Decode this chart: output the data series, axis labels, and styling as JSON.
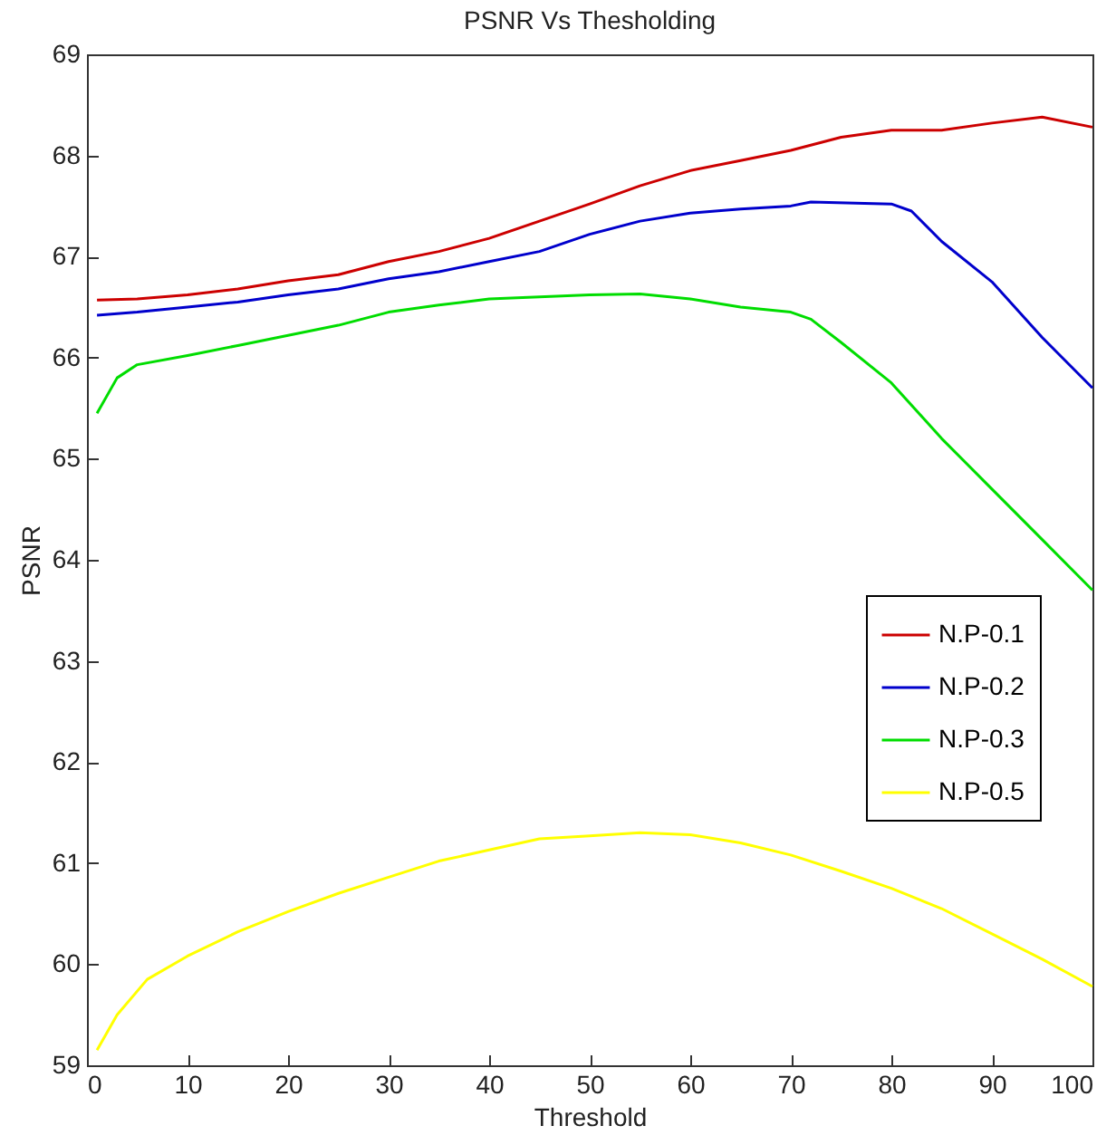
{
  "chart_data": {
    "type": "line",
    "title": "PSNR Vs Thesholding",
    "xlabel": "Threshold",
    "ylabel": "PSNR",
    "xlim": [
      0,
      100
    ],
    "xticks": [
      0,
      10,
      20,
      30,
      40,
      50,
      60,
      70,
      80,
      90,
      100
    ],
    "ylim": [
      59,
      69
    ],
    "yticks": [
      59,
      60,
      61,
      62,
      63,
      64,
      65,
      66,
      67,
      68,
      69
    ],
    "legend": "right",
    "grid": false,
    "series": [
      {
        "name": "N.P-0.1",
        "color": "#cc0000",
        "x": [
          1,
          5,
          10,
          15,
          20,
          25,
          30,
          35,
          40,
          45,
          50,
          55,
          60,
          65,
          70,
          75,
          80,
          85,
          90,
          95,
          100
        ],
        "values": [
          66.57,
          66.58,
          66.62,
          66.68,
          66.76,
          66.82,
          66.95,
          67.05,
          67.18,
          67.35,
          67.52,
          67.7,
          67.85,
          67.95,
          68.05,
          68.18,
          68.25,
          68.25,
          68.32,
          68.38,
          68.28
        ]
      },
      {
        "name": "N.P-0.2",
        "color": "#0000cc",
        "x": [
          1,
          5,
          10,
          15,
          20,
          25,
          30,
          35,
          40,
          45,
          50,
          55,
          60,
          65,
          70,
          72,
          80,
          82,
          85,
          90,
          95,
          100
        ],
        "values": [
          66.42,
          66.45,
          66.5,
          66.55,
          66.62,
          66.68,
          66.78,
          66.85,
          66.95,
          67.05,
          67.22,
          67.35,
          67.43,
          67.47,
          67.5,
          67.54,
          67.52,
          67.45,
          67.15,
          66.75,
          66.2,
          65.7
        ]
      },
      {
        "name": "N.P-0.3",
        "color": "#00dd00",
        "x": [
          1,
          3,
          5,
          10,
          15,
          20,
          25,
          30,
          35,
          40,
          45,
          50,
          55,
          60,
          65,
          70,
          72,
          75,
          80,
          85,
          90,
          95,
          100
        ],
        "values": [
          65.45,
          65.8,
          65.93,
          66.02,
          66.12,
          66.22,
          66.32,
          66.45,
          66.52,
          66.58,
          66.6,
          66.62,
          66.63,
          66.58,
          66.5,
          66.45,
          66.38,
          66.15,
          65.75,
          65.2,
          64.7,
          64.2,
          63.7
        ]
      },
      {
        "name": "N.P-0.5",
        "color": "#ffff00",
        "x": [
          1,
          3,
          6,
          10,
          15,
          20,
          25,
          30,
          35,
          40,
          45,
          50,
          55,
          60,
          65,
          70,
          75,
          80,
          85,
          90,
          95,
          100
        ],
        "values": [
          59.15,
          59.5,
          59.85,
          60.08,
          60.32,
          60.52,
          60.7,
          60.86,
          61.02,
          61.13,
          61.24,
          61.27,
          61.3,
          61.28,
          61.2,
          61.08,
          60.92,
          60.75,
          60.55,
          60.3,
          60.05,
          59.78
        ]
      }
    ]
  }
}
